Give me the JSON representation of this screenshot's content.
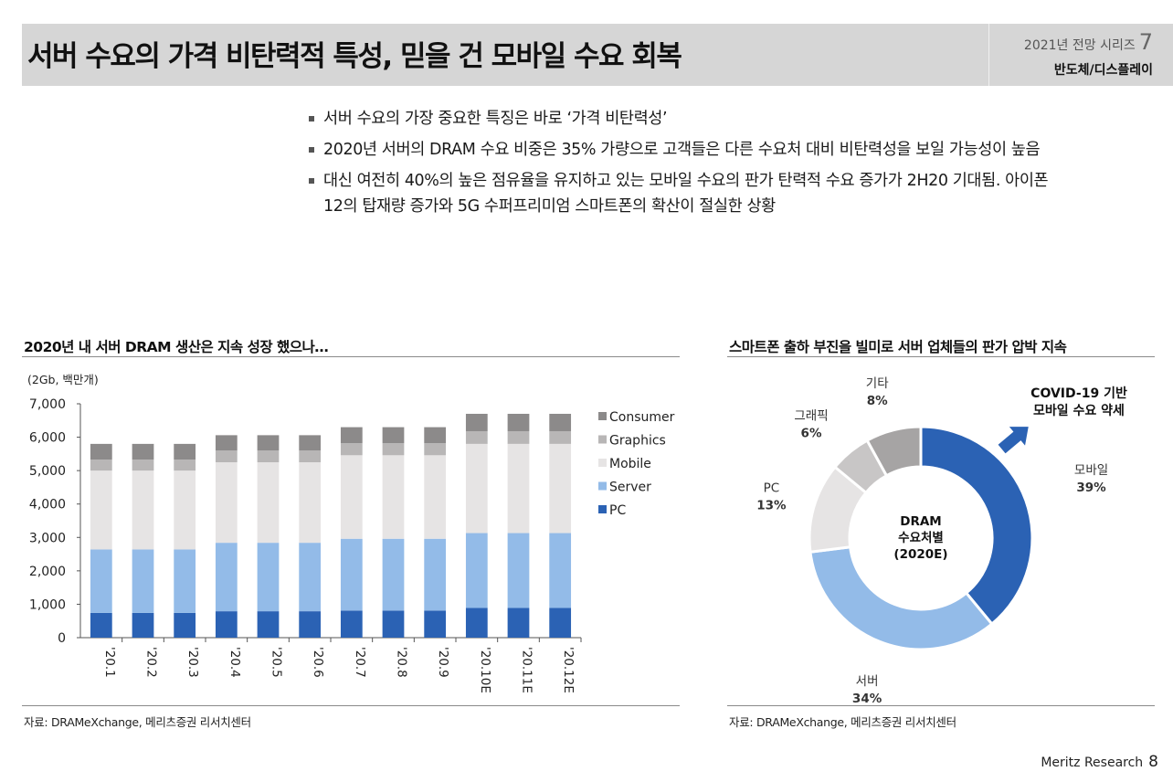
{
  "header": {
    "title": "서버 수요의 가격 비탄력적 특성, 믿을 건 모바일 수요 회복",
    "series": "2021년 전망 시리즈",
    "series_number": "7",
    "category": "반도체/디스플레이"
  },
  "bullets": [
    "서버 수요의 가장 중요한 특징은 바로 ‘가격 비탄력성’",
    "2020년 서버의 DRAM 수요 비중은 35% 가량으로 고객들은 다른 수요처 대비 비탄력성을 보일 가능성이 높음",
    "대신 여전히 40%의 높은 점유율을 유지하고 있는 모바일 수요의 판가 탄력적 수요 증가가 2H20 기대됨. 아이폰12의 탑재량 증가와 5G 수퍼프리미엄 스마트폰의 확산이 절실한 상황"
  ],
  "left_panel": {
    "title": "2020년 내 서버 DRAM 생산은 지속 성장 했으나…",
    "unit": "(2Gb, 백만개)",
    "source": "자료: DRAMeXchange, 메리츠증권 리서치센터"
  },
  "right_panel": {
    "title": "스마트폰 출하 부진을 빌미로 서버 업체들의 판가 압박 지속",
    "source": "자료: DRAMeXchange, 메리츠증권 리서치센터",
    "annotation": [
      "COVID-19 기반",
      "모바일 수요 약세"
    ],
    "arrow_color": "#2b62b4"
  },
  "chart_data": [
    {
      "type": "bar",
      "stacked": true,
      "title": "",
      "xlabel": "",
      "ylabel": "",
      "ylim": [
        0,
        7000
      ],
      "yticks": [
        "0",
        "1,000",
        "2,000",
        "3,000",
        "4,000",
        "5,000",
        "6,000",
        "7,000"
      ],
      "grid": false,
      "legend_position": "right",
      "categories": [
        "'20.1",
        "'20.2",
        "'20.3",
        "'20.4",
        "'20.5",
        "'20.6",
        "'20.7",
        "'20.8",
        "'20.9",
        "'20.10E",
        "'20.11E",
        "'20.12E"
      ],
      "series": [
        {
          "name": "PC",
          "color": "#2b62b4",
          "values": [
            740,
            740,
            740,
            790,
            790,
            790,
            810,
            810,
            810,
            890,
            890,
            890
          ]
        },
        {
          "name": "Server",
          "color": "#93bbe8",
          "values": [
            1900,
            1900,
            1900,
            2050,
            2050,
            2050,
            2150,
            2150,
            2150,
            2240,
            2240,
            2240
          ]
        },
        {
          "name": "Mobile",
          "color": "#e6e4e4",
          "values": [
            2360,
            2360,
            2360,
            2410,
            2410,
            2410,
            2500,
            2500,
            2500,
            2670,
            2670,
            2670
          ]
        },
        {
          "name": "Graphics",
          "color": "#b8b6b6",
          "values": [
            330,
            330,
            330,
            350,
            350,
            350,
            360,
            360,
            360,
            380,
            380,
            380
          ]
        },
        {
          "name": "Consumer",
          "color": "#8c8a8a",
          "values": [
            470,
            470,
            470,
            460,
            460,
            460,
            480,
            480,
            480,
            520,
            520,
            520
          ]
        }
      ]
    },
    {
      "type": "pie",
      "donut": true,
      "center_label": [
        "DRAM",
        "수요처별",
        "(2020E)"
      ],
      "slices": [
        {
          "label": "모바일",
          "value": 39,
          "value_label": "39%",
          "color": "#2b62b4"
        },
        {
          "label": "서버",
          "value": 34,
          "value_label": "34%",
          "color": "#93bbe8"
        },
        {
          "label": "PC",
          "value": 13,
          "value_label": "13%",
          "color": "#e6e4e4"
        },
        {
          "label": "그래픽",
          "value": 6,
          "value_label": "6%",
          "color": "#c8c6c6"
        },
        {
          "label": "기타",
          "value": 8,
          "value_label": "8%",
          "color": "#a6a4a4"
        }
      ]
    }
  ],
  "footer": {
    "brand": "Meritz Research",
    "page": "8"
  }
}
